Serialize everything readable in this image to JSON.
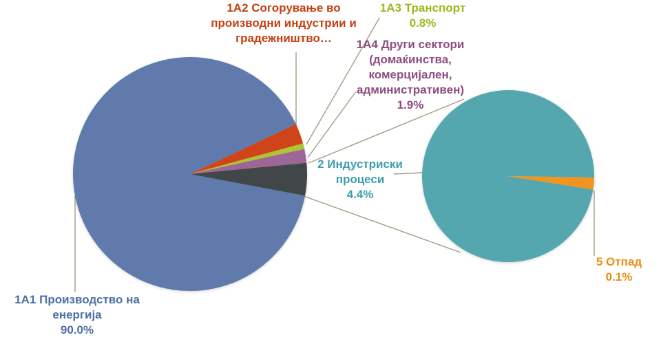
{
  "chart_data": {
    "type": "pie",
    "subtype": "pie-of-pie",
    "title": "",
    "legend": "none",
    "primary": {
      "slices": [
        {
          "label": "1А1 Производство на енергија",
          "pct_label": "90.0%",
          "value": 90.0,
          "color": "#5F7AAB"
        },
        {
          "label": "1А2 Согорување во производни индустрии и градежништво…",
          "pct_label": "",
          "value": 2.8,
          "color": "#CF4519"
        },
        {
          "label": "1А3 Транспорт",
          "pct_label": "0.8%",
          "value": 0.8,
          "color": "#AEC433"
        },
        {
          "label": "1А4 Други сектори (домаќинства, комерцијален, административен)",
          "pct_label": "1.9%",
          "value": 1.9,
          "color": "#9D6697"
        },
        {
          "label": "",
          "pct_label": "",
          "value": 4.5,
          "color": "#414649",
          "breakout_to_secondary": true
        }
      ]
    },
    "secondary": {
      "slices": [
        {
          "label": "2 Индустриски процеси",
          "pct_label": "4.4%",
          "value": 4.4,
          "color": "#55A7AF"
        },
        {
          "label": "5 Отпад",
          "pct_label": "0.1%",
          "value": 0.1,
          "color": "#F3941E"
        }
      ]
    }
  },
  "labels": {
    "a2": {
      "line1": "1А2 Согорување во",
      "line2": "производни индустрии и",
      "line3": "градежништво…"
    },
    "a3": {
      "line1": "1А3 Транспорт",
      "line2": "0.8%"
    },
    "a4": {
      "line1": "1А4 Други сектори",
      "line2": "(домаќинства,",
      "line3": "комерцијален,",
      "line4": "административен)",
      "line5": "1.9%"
    },
    "ind": {
      "line1": "2 Индустриски",
      "line2": "процеси",
      "line3": "4.4%"
    },
    "a1": {
      "line1": "1А1 Производство на",
      "line2": "енергија",
      "line3": "90.0%"
    },
    "otpad": {
      "line1": "5 Отпад",
      "line2": "0.1%"
    }
  },
  "colors": {
    "background": "#FFFFFF",
    "slice_1a1_blue": "#5F7AAB",
    "slice_1a2_red": "#CF4519",
    "slice_1a3_green": "#AEC433",
    "slice_1a4_purple": "#9D6697",
    "slice_group_dark": "#414649",
    "slice_2_teal": "#55A7AF",
    "slice_5_orange": "#F3941E",
    "leader_line": "#A89A85",
    "text_blue": "#4A6FA5",
    "text_red": "#C44112",
    "text_green": "#9CB91B",
    "text_purple": "#8E4D81",
    "text_teal": "#3D9EAC",
    "text_orange": "#EB8D10"
  }
}
